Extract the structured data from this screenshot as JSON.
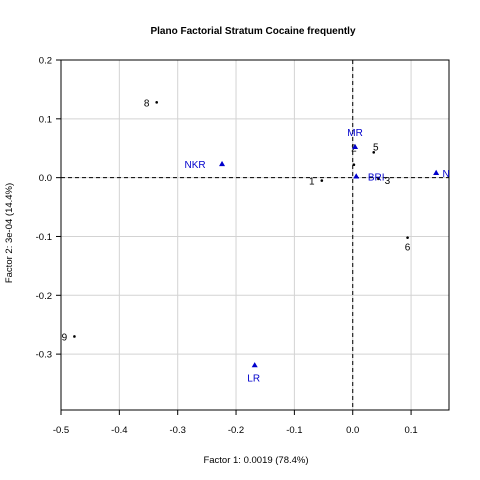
{
  "chart_data": {
    "type": "scatter",
    "title": "Plano Factorial Stratum Cocaine frequently",
    "xlabel": "Factor 1: 0.0019 (78.4%)",
    "ylabel": "Factor 2: 3e-04 (14.4%)",
    "xlim": [
      -0.5,
      0.165
    ],
    "ylim": [
      -0.395,
      0.2
    ],
    "xticks": [
      -0.5,
      -0.4,
      -0.3,
      -0.2,
      -0.1,
      0.0,
      0.1
    ],
    "xtick_labels": [
      "-0.5",
      "-0.4",
      "-0.3",
      "-0.2",
      "-0.1",
      "0.0",
      "0.1"
    ],
    "yticks": [
      -0.3,
      -0.2,
      -0.1,
      0.0,
      0.1,
      0.2
    ],
    "ytick_labels": [
      "-0.3",
      "-0.2",
      "-0.1",
      "0.0",
      "0.1",
      "0.2"
    ],
    "grid": true,
    "reference_lines": {
      "x": 0,
      "y": 0,
      "style": "dashed"
    },
    "colors": {
      "rows": "#000000",
      "columns": "#0000cc",
      "grid": "#d3d3d3"
    },
    "series": [
      {
        "marker": "point",
        "color": "#000000",
        "points": [
          {
            "label": "1",
            "x": -0.053,
            "y": -0.005
          },
          {
            "label": "2",
            "x": 0.002,
            "y": 0.022
          },
          {
            "label": "3",
            "x": 0.044,
            "y": -0.002
          },
          {
            "label": "5",
            "x": 0.036,
            "y": 0.043
          },
          {
            "label": "6",
            "x": 0.094,
            "y": -0.102
          },
          {
            "label": "8",
            "x": -0.336,
            "y": 0.128
          },
          {
            "label": "9",
            "x": -0.477,
            "y": -0.27
          }
        ]
      },
      {
        "marker": "triangle",
        "color": "#0000cc",
        "points": [
          {
            "label": "MR",
            "x": 0.004,
            "y": 0.052
          },
          {
            "label": "NKR",
            "x": -0.224,
            "y": 0.023
          },
          {
            "label": "N",
            "x": 0.143,
            "y": 0.008
          },
          {
            "label": "BRI",
            "x": 0.006,
            "y": 0.002
          },
          {
            "label": "LR",
            "x": -0.168,
            "y": -0.319
          }
        ]
      }
    ]
  }
}
